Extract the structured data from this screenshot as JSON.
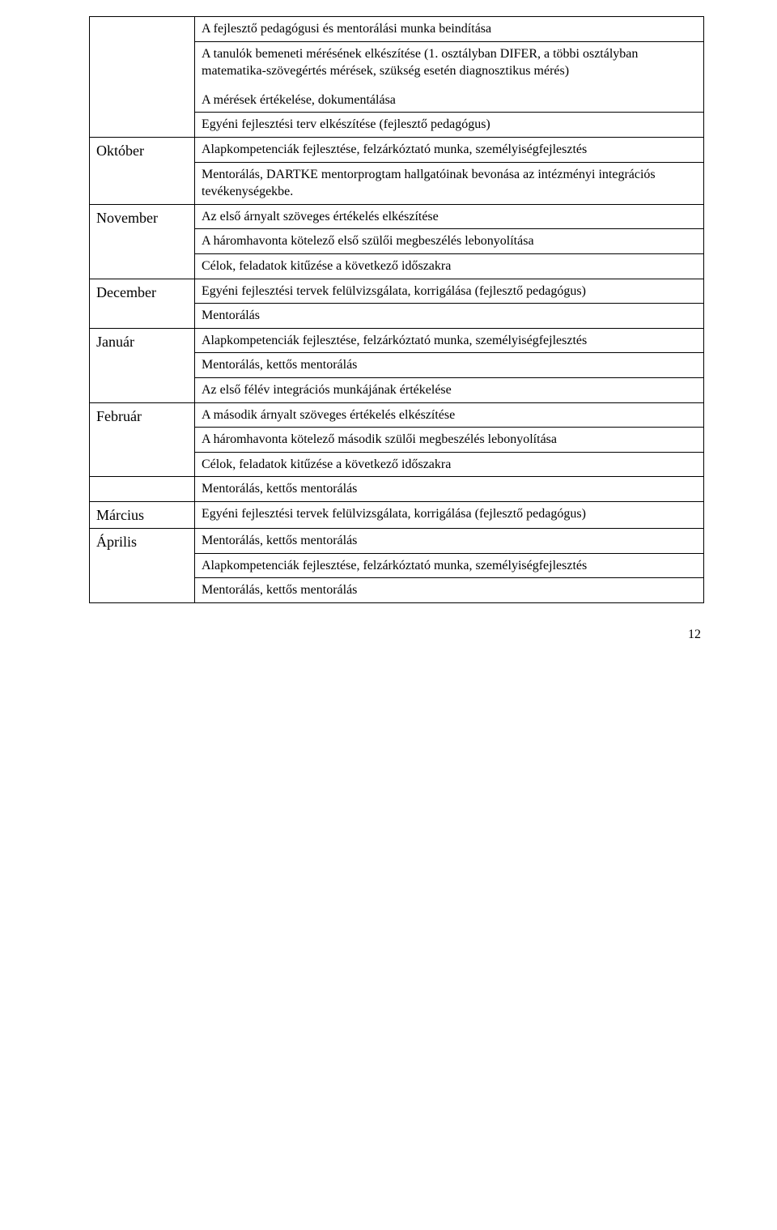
{
  "rows": [
    {
      "month": "",
      "cells": [
        {
          "paras": [
            "A fejlesztő pedagógusi és mentorálási munka beindítása"
          ]
        },
        {
          "paras": [
            "A tanulók bemeneti mérésének elkészítése (1. osztályban DIFER, a többi osztályban matematika-szövegértés mérések, szükség esetén diagnosztikus mérés)",
            "A mérések értékelése, dokumentálása"
          ]
        },
        {
          "paras": [
            "Egyéni fejlesztési terv elkészítése (fejlesztő pedagógus)"
          ]
        }
      ]
    },
    {
      "month": "Október",
      "cells": [
        {
          "paras": [
            "Alapkompetenciák fejlesztése, felzárkóztató munka, személyiségfejlesztés"
          ]
        },
        {
          "paras": [
            "Mentorálás, DARTKE mentorprogtam hallgatóinak bevonása az intézményi integrációs tevékenységekbe."
          ]
        }
      ]
    },
    {
      "month": "November",
      "cells": [
        {
          "paras": [
            "Az első árnyalt szöveges értékelés elkészítése"
          ]
        },
        {
          "paras": [
            "A háromhavonta kötelező első szülői megbeszélés lebonyolítása"
          ]
        },
        {
          "paras": [
            "Célok, feladatok kitűzése a következő időszakra"
          ]
        }
      ]
    },
    {
      "month": "December",
      "cells": [
        {
          "paras": [
            "Egyéni fejlesztési tervek felülvizsgálata, korrigálása (fejlesztő pedagógus)"
          ]
        },
        {
          "paras": [
            "Mentorálás"
          ]
        }
      ]
    },
    {
      "month": "Január",
      "cells": [
        {
          "paras": [
            "Alapkompetenciák fejlesztése, felzárkóztató munka, személyiségfejlesztés"
          ]
        },
        {
          "paras": [
            "Mentorálás, kettős mentorálás"
          ]
        },
        {
          "paras": [
            "Az első félév integrációs munkájának értékelése"
          ]
        }
      ]
    },
    {
      "month": "Február",
      "cells": [
        {
          "paras": [
            "A második árnyalt szöveges értékelés elkészítése"
          ]
        },
        {
          "paras": [
            "A háromhavonta kötelező második szülői megbeszélés lebonyolítása"
          ]
        },
        {
          "paras": [
            "Célok, feladatok kitűzése a következő időszakra"
          ]
        }
      ]
    },
    {
      "month": "",
      "cells": [
        {
          "paras": [
            "Mentorálás, kettős mentorálás"
          ]
        }
      ]
    },
    {
      "month": "Március",
      "cells": [
        {
          "paras": [
            "Egyéni fejlesztési tervek felülvizsgálata, korrigálása (fejlesztő pedagógus)"
          ]
        }
      ]
    },
    {
      "month": "Április",
      "cells": [
        {
          "paras": [
            "Mentorálás, kettős mentorálás"
          ]
        },
        {
          "paras": [
            "Alapkompetenciák fejlesztése, felzárkóztató munka, személyiségfejlesztés"
          ]
        },
        {
          "paras": [
            "Mentorálás, kettős mentorálás"
          ]
        }
      ]
    }
  ],
  "pageNumber": "12"
}
